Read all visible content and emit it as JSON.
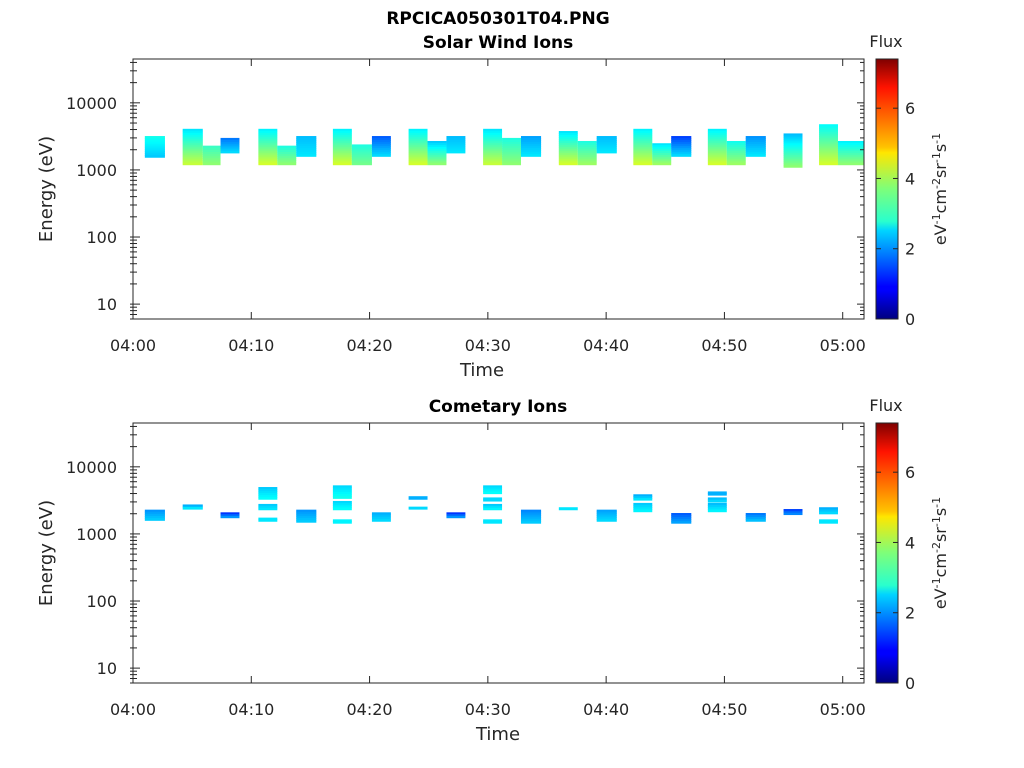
{
  "figure": {
    "title": "RPCICA050301T04.PNG"
  },
  "chart_data": [
    {
      "type": "heatmap",
      "title": "Solar Wind Ions",
      "xlabel": "Time",
      "ylabel": "Energy (eV)",
      "x_ticks": [
        "04:00",
        "04:10",
        "04:20",
        "04:30",
        "04:40",
        "04:50",
        "05:00"
      ],
      "x_range_minutes": [
        0,
        61.8
      ],
      "y_scale": "log",
      "y_ticks": [
        "10",
        "100",
        "1000",
        "10000"
      ],
      "y_range": [
        6,
        45000
      ],
      "colorbar": {
        "title": "Flux",
        "label": "eV-1cm-2sr-1s-1",
        "ticks": [
          "0",
          "2",
          "4",
          "6"
        ],
        "range": [
          0,
          7.4
        ],
        "colormap": "jet"
      },
      "grid": false,
      "blocks": [
        {
          "t0": 1.0,
          "t1": 2.7,
          "e_lo": 1550,
          "e_hi": 3200,
          "flux_lo": 2.4,
          "flux_hi": 2.9
        },
        {
          "t0": 4.2,
          "t1": 5.9,
          "e_lo": 1200,
          "e_hi": 4100,
          "flux_lo": 4.2,
          "flux_hi": 2.6
        },
        {
          "t0": 5.9,
          "t1": 7.4,
          "e_lo": 1200,
          "e_hi": 2300,
          "flux_lo": 3.8,
          "flux_hi": 3.2
        },
        {
          "t0": 7.4,
          "t1": 9.0,
          "e_lo": 1800,
          "e_hi": 3000,
          "flux_lo": 2.5,
          "flux_hi": 1.8
        },
        {
          "t0": 10.6,
          "t1": 12.2,
          "e_lo": 1200,
          "e_hi": 4100,
          "flux_lo": 4.3,
          "flux_hi": 2.7
        },
        {
          "t0": 12.2,
          "t1": 13.8,
          "e_lo": 1200,
          "e_hi": 2300,
          "flux_lo": 3.8,
          "flux_hi": 3.0
        },
        {
          "t0": 13.8,
          "t1": 15.5,
          "e_lo": 1600,
          "e_hi": 3200,
          "flux_lo": 2.6,
          "flux_hi": 2.3
        },
        {
          "t0": 16.9,
          "t1": 18.5,
          "e_lo": 1200,
          "e_hi": 4100,
          "flux_lo": 4.3,
          "flux_hi": 2.7
        },
        {
          "t0": 18.5,
          "t1": 20.2,
          "e_lo": 1200,
          "e_hi": 2400,
          "flux_lo": 3.6,
          "flux_hi": 3.0
        },
        {
          "t0": 20.2,
          "t1": 21.8,
          "e_lo": 1600,
          "e_hi": 3200,
          "flux_lo": 2.5,
          "flux_hi": 1.6
        },
        {
          "t0": 23.3,
          "t1": 24.9,
          "e_lo": 1200,
          "e_hi": 4100,
          "flux_lo": 4.3,
          "flux_hi": 2.7
        },
        {
          "t0": 24.9,
          "t1": 26.5,
          "e_lo": 1200,
          "e_hi": 2700,
          "flux_lo": 3.8,
          "flux_hi": 2.4
        },
        {
          "t0": 26.5,
          "t1": 28.1,
          "e_lo": 1800,
          "e_hi": 3200,
          "flux_lo": 2.6,
          "flux_hi": 2.3
        },
        {
          "t0": 29.6,
          "t1": 31.2,
          "e_lo": 1200,
          "e_hi": 4100,
          "flux_lo": 4.2,
          "flux_hi": 2.6
        },
        {
          "t0": 31.2,
          "t1": 32.8,
          "e_lo": 1200,
          "e_hi": 3000,
          "flux_lo": 3.8,
          "flux_hi": 3.0
        },
        {
          "t0": 32.8,
          "t1": 34.5,
          "e_lo": 1600,
          "e_hi": 3200,
          "flux_lo": 2.6,
          "flux_hi": 2.1
        },
        {
          "t0": 36.0,
          "t1": 37.6,
          "e_lo": 1200,
          "e_hi": 3800,
          "flux_lo": 4.3,
          "flux_hi": 2.6
        },
        {
          "t0": 37.6,
          "t1": 39.2,
          "e_lo": 1200,
          "e_hi": 2700,
          "flux_lo": 3.9,
          "flux_hi": 3.0
        },
        {
          "t0": 39.2,
          "t1": 40.9,
          "e_lo": 1800,
          "e_hi": 3200,
          "flux_lo": 2.6,
          "flux_hi": 2.3
        },
        {
          "t0": 42.3,
          "t1": 43.9,
          "e_lo": 1200,
          "e_hi": 4100,
          "flux_lo": 4.3,
          "flux_hi": 2.7
        },
        {
          "t0": 43.9,
          "t1": 45.5,
          "e_lo": 1200,
          "e_hi": 2500,
          "flux_lo": 3.9,
          "flux_hi": 2.6
        },
        {
          "t0": 45.5,
          "t1": 47.2,
          "e_lo": 1600,
          "e_hi": 3200,
          "flux_lo": 2.5,
          "flux_hi": 1.4
        },
        {
          "t0": 48.6,
          "t1": 50.2,
          "e_lo": 1200,
          "e_hi": 4100,
          "flux_lo": 4.3,
          "flux_hi": 2.7
        },
        {
          "t0": 50.2,
          "t1": 51.8,
          "e_lo": 1200,
          "e_hi": 2700,
          "flux_lo": 3.9,
          "flux_hi": 2.9
        },
        {
          "t0": 51.8,
          "t1": 53.5,
          "e_lo": 1600,
          "e_hi": 3200,
          "flux_lo": 2.6,
          "flux_hi": 2.0
        },
        {
          "t0": 55.0,
          "t1": 56.6,
          "e_lo": 1100,
          "e_hi": 3500,
          "flux_lo": 3.8,
          "flux_hi": 2.3
        },
        {
          "t0": 58.0,
          "t1": 59.6,
          "e_lo": 1200,
          "e_hi": 4800,
          "flux_lo": 4.3,
          "flux_hi": 2.8
        },
        {
          "t0": 59.6,
          "t1": 61.8,
          "e_lo": 1200,
          "e_hi": 2700,
          "flux_lo": 3.8,
          "flux_hi": 2.7
        }
      ]
    },
    {
      "type": "heatmap",
      "title": "Cometary Ions",
      "xlabel": "Time",
      "ylabel": "Energy (eV)",
      "x_ticks": [
        "04:00",
        "04:10",
        "04:20",
        "04:30",
        "04:40",
        "04:50",
        "05:00"
      ],
      "x_range_minutes": [
        0,
        61.8
      ],
      "y_scale": "log",
      "y_ticks": [
        "10",
        "100",
        "1000",
        "10000"
      ],
      "y_range": [
        6,
        45000
      ],
      "colorbar": {
        "title": "Flux",
        "label": "eV-1cm-2sr-1s-1",
        "ticks": [
          "0",
          "2",
          "4",
          "6"
        ],
        "range": [
          0,
          7.4
        ],
        "colormap": "jet"
      },
      "grid": false,
      "blocks": [
        {
          "t0": 1.0,
          "t1": 2.7,
          "e_lo": 1600,
          "e_hi": 2300,
          "flux_lo": 2.4,
          "flux_hi": 2.0
        },
        {
          "t0": 4.2,
          "t1": 5.9,
          "e_lo": 2350,
          "e_hi": 2750,
          "flux_lo": 2.6,
          "flux_hi": 2.2
        },
        {
          "t0": 7.4,
          "t1": 9.0,
          "e_lo": 1750,
          "e_hi": 2100,
          "flux_lo": 2.0,
          "flux_hi": 1.3
        },
        {
          "t0": 10.6,
          "t1": 12.2,
          "e_lo": 1550,
          "e_hi": 1750,
          "flux_lo": 2.6,
          "flux_hi": 2.6
        },
        {
          "t0": 10.6,
          "t1": 12.2,
          "e_lo": 2300,
          "e_hi": 2800,
          "flux_lo": 2.6,
          "flux_hi": 2.4
        },
        {
          "t0": 10.6,
          "t1": 12.2,
          "e_lo": 3300,
          "e_hi": 5000,
          "flux_lo": 2.8,
          "flux_hi": 2.4
        },
        {
          "t0": 13.8,
          "t1": 15.5,
          "e_lo": 1500,
          "e_hi": 2300,
          "flux_lo": 2.4,
          "flux_hi": 2.0
        },
        {
          "t0": 16.9,
          "t1": 18.5,
          "e_lo": 1450,
          "e_hi": 1650,
          "flux_lo": 2.7,
          "flux_hi": 2.7
        },
        {
          "t0": 16.9,
          "t1": 18.5,
          "e_lo": 2300,
          "e_hi": 3100,
          "flux_lo": 2.8,
          "flux_hi": 2.5
        },
        {
          "t0": 16.9,
          "t1": 18.5,
          "e_lo": 3400,
          "e_hi": 5300,
          "flux_lo": 2.9,
          "flux_hi": 2.5
        },
        {
          "t0": 20.2,
          "t1": 21.8,
          "e_lo": 1550,
          "e_hi": 2100,
          "flux_lo": 2.5,
          "flux_hi": 2.2
        },
        {
          "t0": 23.3,
          "t1": 24.9,
          "e_lo": 2350,
          "e_hi": 2550,
          "flux_lo": 2.5,
          "flux_hi": 2.5
        },
        {
          "t0": 23.3,
          "t1": 24.9,
          "e_lo": 3300,
          "e_hi": 3650,
          "flux_lo": 2.2,
          "flux_hi": 2.2
        },
        {
          "t0": 26.5,
          "t1": 28.1,
          "e_lo": 1750,
          "e_hi": 2100,
          "flux_lo": 2.0,
          "flux_hi": 1.3
        },
        {
          "t0": 29.6,
          "t1": 31.2,
          "e_lo": 1450,
          "e_hi": 1650,
          "flux_lo": 2.6,
          "flux_hi": 2.6
        },
        {
          "t0": 29.6,
          "t1": 31.2,
          "e_lo": 2300,
          "e_hi": 2800,
          "flux_lo": 2.7,
          "flux_hi": 2.4
        },
        {
          "t0": 29.6,
          "t1": 31.2,
          "e_lo": 3100,
          "e_hi": 3500,
          "flux_lo": 2.5,
          "flux_hi": 2.5
        },
        {
          "t0": 29.6,
          "t1": 31.2,
          "e_lo": 4000,
          "e_hi": 5300,
          "flux_lo": 2.8,
          "flux_hi": 2.5
        },
        {
          "t0": 32.8,
          "t1": 34.5,
          "e_lo": 1450,
          "e_hi": 2300,
          "flux_lo": 2.4,
          "flux_hi": 1.9
        },
        {
          "t0": 36.0,
          "t1": 37.6,
          "e_lo": 2300,
          "e_hi": 2500,
          "flux_lo": 2.6,
          "flux_hi": 2.6
        },
        {
          "t0": 39.2,
          "t1": 40.9,
          "e_lo": 1550,
          "e_hi": 2300,
          "flux_lo": 2.5,
          "flux_hi": 2.1
        },
        {
          "t0": 42.3,
          "t1": 43.9,
          "e_lo": 2150,
          "e_hi": 2900,
          "flux_lo": 2.7,
          "flux_hi": 2.4
        },
        {
          "t0": 42.3,
          "t1": 43.9,
          "e_lo": 3200,
          "e_hi": 3900,
          "flux_lo": 2.6,
          "flux_hi": 2.2
        },
        {
          "t0": 45.5,
          "t1": 47.2,
          "e_lo": 1450,
          "e_hi": 2050,
          "flux_lo": 2.1,
          "flux_hi": 1.6
        },
        {
          "t0": 48.6,
          "t1": 50.2,
          "e_lo": 2150,
          "e_hi": 2900,
          "flux_lo": 2.7,
          "flux_hi": 2.3
        },
        {
          "t0": 48.6,
          "t1": 50.2,
          "e_lo": 3000,
          "e_hi": 3500,
          "flux_lo": 2.5,
          "flux_hi": 2.3
        },
        {
          "t0": 48.6,
          "t1": 50.2,
          "e_lo": 3800,
          "e_hi": 4300,
          "flux_lo": 2.2,
          "flux_hi": 2.2
        },
        {
          "t0": 51.8,
          "t1": 53.5,
          "e_lo": 1550,
          "e_hi": 2050,
          "flux_lo": 2.3,
          "flux_hi": 1.8
        },
        {
          "t0": 55.0,
          "t1": 56.6,
          "e_lo": 1950,
          "e_hi": 2350,
          "flux_lo": 1.9,
          "flux_hi": 1.4
        },
        {
          "t0": 58.0,
          "t1": 59.6,
          "e_lo": 1450,
          "e_hi": 1650,
          "flux_lo": 2.6,
          "flux_hi": 2.6
        },
        {
          "t0": 58.0,
          "t1": 59.6,
          "e_lo": 2000,
          "e_hi": 2500,
          "flux_lo": 2.5,
          "flux_hi": 2.2
        }
      ]
    }
  ]
}
